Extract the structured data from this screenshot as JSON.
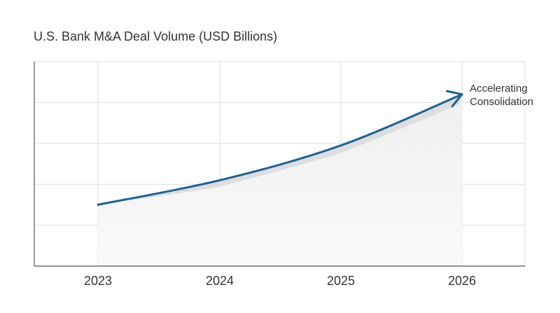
{
  "chart_data": {
    "type": "line",
    "title": "U.S. Bank M&A Deal Volume (USD Billions)",
    "xlabel": "",
    "ylabel": "",
    "categories": [
      "2023",
      "2024",
      "2025",
      "2026"
    ],
    "series": [
      {
        "values": [
          1.5,
          2.1,
          2.95,
          4.2
        ]
      }
    ],
    "ylim": [
      0,
      5
    ],
    "y_tick_labels_shown": false,
    "grid": true,
    "legend": "none",
    "annotations": [
      {
        "x": "2026",
        "text_lines": [
          "Accelerating",
          "Consolidation"
        ]
      }
    ],
    "colors": {
      "line": "#1d6396",
      "shadow": "#dcdcdc",
      "grid": "#dedede",
      "axis": "#555555"
    }
  }
}
